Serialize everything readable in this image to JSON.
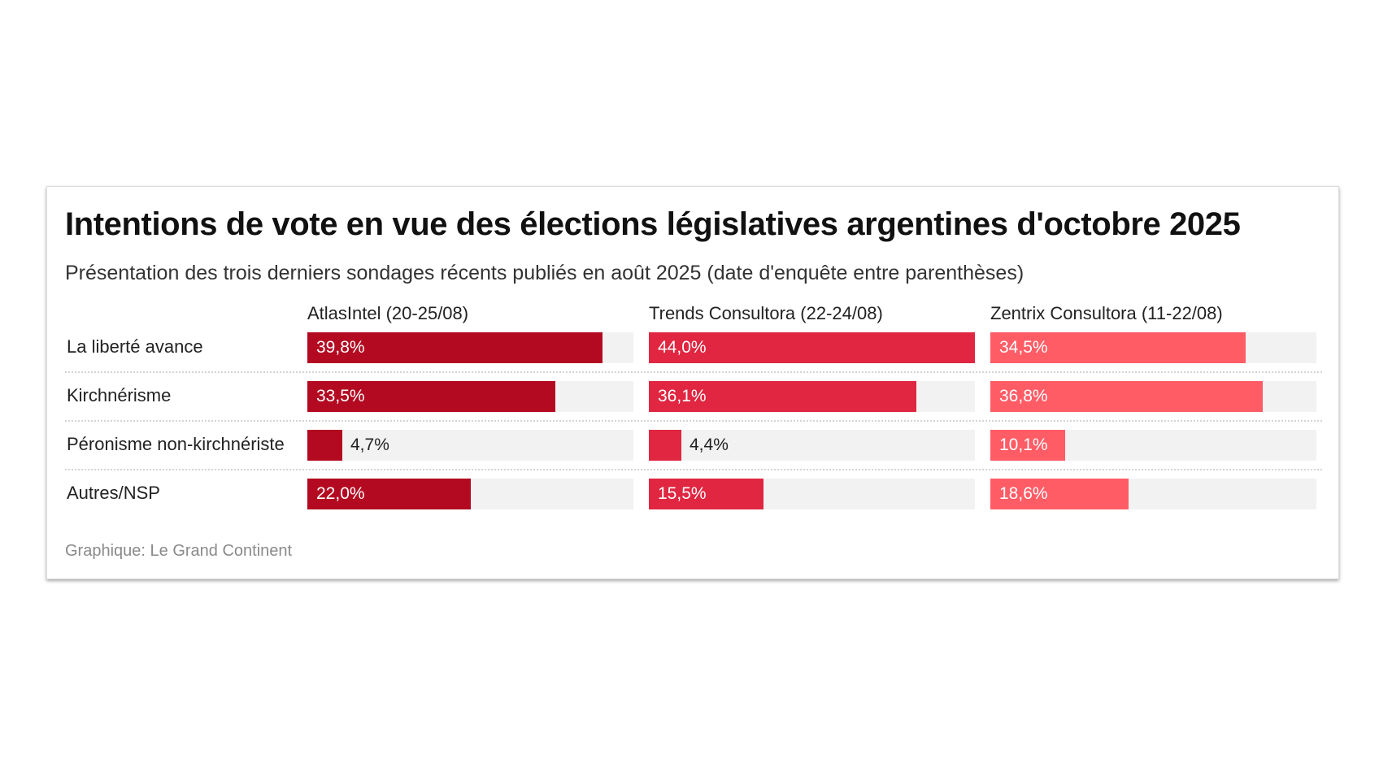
{
  "chart_data": {
    "type": "bar",
    "title": "Intentions de vote en vue des élections législatives argentines d'octobre 2025",
    "subtitle": "Présentation des trois derniers sondages récents publiés en août 2025 (date d'enquête entre parenthèses)",
    "categories": [
      "La liberté avance",
      "Kirchnérisme",
      "Péronisme non-kirchnériste",
      "Autres/NSP"
    ],
    "series": [
      {
        "name": "AtlasIntel (20-25/08)",
        "values": [
          39.8,
          33.5,
          4.7,
          22.0
        ],
        "labels": [
          "39,8%",
          "33,5%",
          "4,7%",
          "22,0%"
        ],
        "color": "#b30a21"
      },
      {
        "name": "Trends Consultora (22-24/08)",
        "values": [
          44.0,
          36.1,
          4.4,
          15.5
        ],
        "labels": [
          "44,0%",
          "36,1%",
          "4,4%",
          "15,5%"
        ],
        "color": "#e02640"
      },
      {
        "name": "Zentrix Consultora (11-22/08)",
        "values": [
          34.5,
          36.8,
          10.1,
          18.6
        ],
        "labels": [
          "34,5%",
          "36,8%",
          "10,1%",
          "18,6%"
        ],
        "color": "#ff5c66"
      }
    ],
    "xlim": [
      0,
      44
    ],
    "layout": "small-multiples",
    "credit": "Graphique: Le Grand Continent"
  }
}
